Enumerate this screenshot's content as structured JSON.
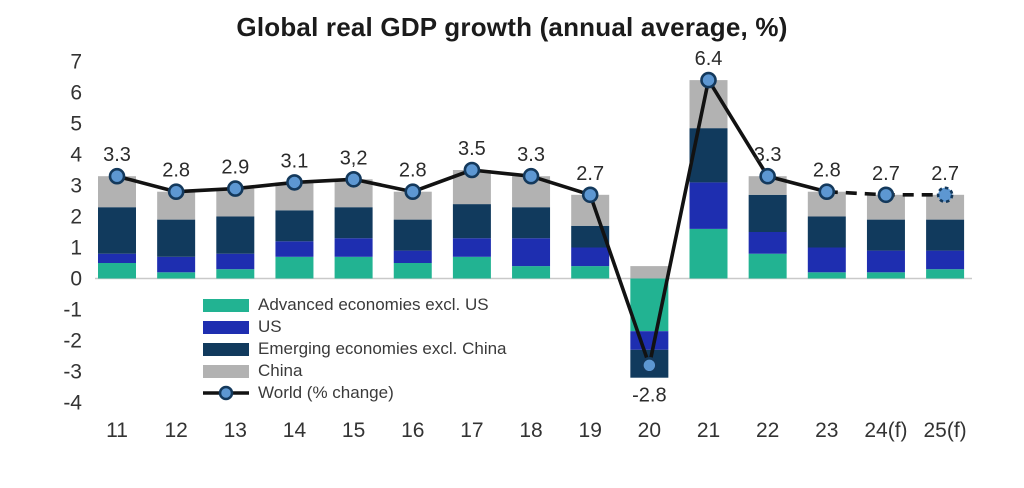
{
  "title": "Global real GDP growth (annual average, %)",
  "chart_data": {
    "type": "bar",
    "subtype": "stacked-bars-with-line-overlay",
    "title": "Global real GDP growth (annual average, %)",
    "categories": [
      "11",
      "12",
      "13",
      "14",
      "15",
      "16",
      "17",
      "18",
      "19",
      "20",
      "21",
      "22",
      "23",
      "24(f)",
      "25(f)"
    ],
    "series": [
      {
        "name": "Advanced economies excl. US",
        "color": "#22b392",
        "values": [
          0.5,
          0.2,
          0.3,
          0.7,
          0.7,
          0.5,
          0.7,
          0.4,
          0.4,
          -1.7,
          1.6,
          0.8,
          0.2,
          0.2,
          0.3
        ]
      },
      {
        "name": "US",
        "color": "#1e2eb0",
        "values": [
          0.3,
          0.5,
          0.5,
          0.5,
          0.6,
          0.4,
          0.6,
          0.9,
          0.6,
          -0.6,
          1.5,
          0.7,
          0.8,
          0.7,
          0.6
        ]
      },
      {
        "name": "Emerging economies excl. China",
        "color": "#113a5d",
        "values": [
          1.5,
          1.2,
          1.2,
          1.0,
          1.0,
          1.0,
          1.1,
          1.0,
          0.7,
          -0.9,
          1.75,
          1.2,
          1.0,
          1.0,
          1.0
        ]
      },
      {
        "name": "China",
        "color": "#b2b2b2",
        "values": [
          1.0,
          0.9,
          0.9,
          0.9,
          0.9,
          0.9,
          1.1,
          1.0,
          1.0,
          0.4,
          1.55,
          0.6,
          0.8,
          0.8,
          0.8
        ]
      }
    ],
    "line": {
      "name": "World (% change)",
      "values": [
        3.3,
        2.8,
        2.9,
        3.1,
        3.2,
        2.8,
        3.5,
        3.3,
        2.7,
        -2.8,
        6.4,
        3.3,
        2.8,
        2.7,
        2.7
      ],
      "labels": [
        "3.3",
        "2.8",
        "2.9",
        "3.1",
        "3,2",
        "2.8",
        "3.5",
        "3.3",
        "2.7",
        "-2.8",
        "6.4",
        "3.3",
        "2.8",
        "2.7",
        "2.7"
      ],
      "dashed_from_index": 12,
      "forecast_marker_index": 14,
      "color": "#121212",
      "marker_fill": "#5d97d2",
      "marker_stroke": "#14395c"
    },
    "ylim": [
      -4,
      7
    ],
    "yticks": [
      7,
      6,
      5,
      4,
      3,
      2,
      1,
      0,
      -1,
      -2,
      -3,
      -4
    ],
    "grid": false,
    "legend_position": "inside-bottom-left",
    "axis_line_color": "#c9c9c9",
    "text_color": "#3a3a3a"
  }
}
